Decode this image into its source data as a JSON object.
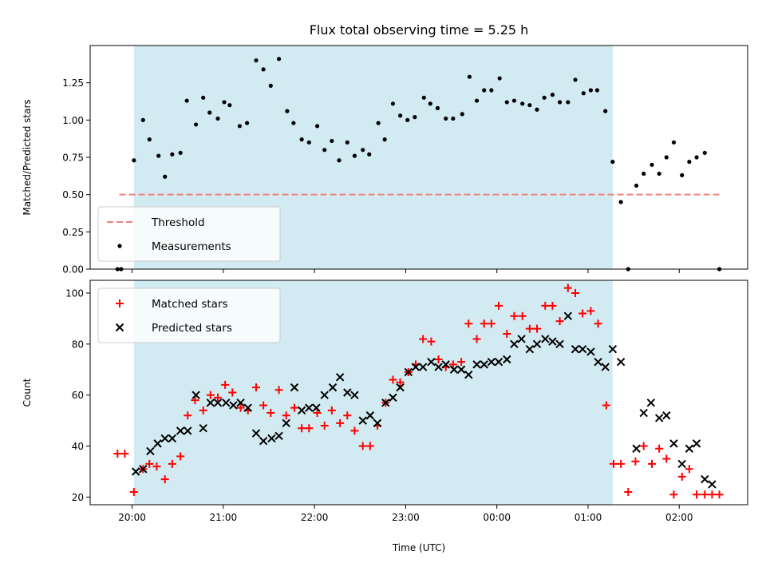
{
  "chart_data": [
    {
      "type": "scatter",
      "title": "Flux total observing time = 5.25 h",
      "xlabel": "",
      "ylabel": "Matched/Predicted stars",
      "ylim": [
        0,
        1.5
      ],
      "yticks": [
        "0.00",
        "0.25",
        "0.50",
        "0.75",
        "1.00",
        "1.25"
      ],
      "ytick_values": [
        0,
        0.25,
        0.5,
        0.75,
        1.0,
        1.25
      ],
      "xlim": [
        19.54,
        26.75
      ],
      "shaded_interval": [
        20.02,
        25.27
      ],
      "shade_color": "#add8e6",
      "threshold": {
        "name": "Threshold",
        "value": 0.5,
        "color": "#f08080",
        "x_range": [
          19.86,
          26.46
        ]
      },
      "legend": {
        "position": "lower-left",
        "entries": [
          "Threshold",
          "Measurements"
        ]
      },
      "series": [
        {
          "name": "Measurements",
          "color": "#000000",
          "x": [
            19.84,
            19.88,
            20.02,
            20.12,
            20.19,
            20.29,
            20.36,
            20.44,
            20.53,
            20.6,
            20.7,
            20.78,
            20.85,
            20.94,
            21.01,
            21.07,
            21.18,
            21.26,
            21.36,
            21.44,
            21.52,
            21.61,
            21.7,
            21.77,
            21.86,
            21.94,
            22.03,
            22.11,
            22.19,
            22.27,
            22.36,
            22.44,
            22.53,
            22.6,
            22.7,
            22.77,
            22.86,
            22.94,
            23.02,
            23.1,
            23.2,
            23.27,
            23.35,
            23.44,
            23.52,
            23.62,
            23.7,
            23.78,
            23.86,
            23.94,
            24.03,
            24.11,
            24.19,
            24.28,
            24.36,
            24.44,
            24.52,
            24.61,
            24.69,
            24.78,
            24.86,
            24.95,
            25.03,
            25.1,
            25.19,
            25.27,
            25.36,
            25.44,
            25.53,
            25.61,
            25.7,
            25.78,
            25.86,
            25.94,
            26.03,
            26.11,
            26.19,
            26.28,
            26.44
          ],
          "y": [
            0.0,
            0.0,
            0.73,
            1.0,
            0.87,
            0.76,
            0.62,
            0.77,
            0.78,
            1.13,
            0.97,
            1.15,
            1.05,
            1.01,
            1.12,
            1.1,
            0.96,
            0.98,
            1.4,
            1.34,
            1.23,
            1.41,
            1.06,
            0.98,
            0.87,
            0.85,
            0.96,
            0.8,
            0.86,
            0.73,
            0.85,
            0.76,
            0.8,
            0.77,
            0.98,
            0.87,
            1.11,
            1.03,
            1.0,
            1.02,
            1.15,
            1.11,
            1.08,
            1.01,
            1.01,
            1.04,
            1.29,
            1.13,
            1.2,
            1.2,
            1.28,
            1.12,
            1.13,
            1.11,
            1.1,
            1.07,
            1.15,
            1.17,
            1.12,
            1.12,
            1.27,
            1.18,
            1.2,
            1.2,
            1.06,
            0.72,
            0.45,
            0.0,
            0.56,
            0.64,
            0.7,
            0.64,
            0.75,
            0.85,
            0.63,
            0.72,
            0.75,
            0.78,
            0.0
          ]
        }
      ]
    },
    {
      "type": "scatter",
      "title": "",
      "xlabel": "Time (UTC)",
      "ylabel": "Count",
      "ylim": [
        17,
        105
      ],
      "yticks": [
        "20",
        "40",
        "60",
        "80",
        "100"
      ],
      "ytick_values": [
        20,
        40,
        60,
        80,
        100
      ],
      "xlim": [
        19.54,
        26.75
      ],
      "xticks": [
        "20:00",
        "21:00",
        "22:00",
        "23:00",
        "00:00",
        "01:00",
        "02:00"
      ],
      "xtick_values": [
        20,
        21,
        22,
        23,
        24,
        25,
        26
      ],
      "shaded_interval": [
        20.02,
        25.27
      ],
      "shade_color": "#add8e6",
      "legend": {
        "position": "upper-left",
        "entries": [
          "Matched stars",
          "Predicted stars"
        ]
      },
      "series": [
        {
          "name": "Matched stars",
          "marker": "plus",
          "color": "#ff0000",
          "x": [
            19.84,
            19.92,
            20.02,
            20.12,
            20.19,
            20.27,
            20.36,
            20.44,
            20.53,
            20.61,
            20.69,
            20.78,
            20.86,
            20.94,
            21.02,
            21.1,
            21.19,
            21.27,
            21.36,
            21.44,
            21.52,
            21.61,
            21.69,
            21.78,
            21.86,
            21.94,
            22.03,
            22.11,
            22.19,
            22.28,
            22.36,
            22.44,
            22.53,
            22.61,
            22.69,
            22.78,
            22.86,
            22.94,
            23.03,
            23.11,
            23.19,
            23.28,
            23.36,
            23.44,
            23.52,
            23.61,
            23.69,
            23.78,
            23.86,
            23.94,
            24.02,
            24.11,
            24.19,
            24.28,
            24.36,
            24.44,
            24.53,
            24.61,
            24.69,
            24.78,
            24.86,
            24.94,
            25.03,
            25.11,
            25.2,
            25.28,
            25.36,
            25.44,
            25.52,
            25.61,
            25.7,
            25.78,
            25.86,
            25.94,
            26.03,
            26.11,
            26.19,
            26.28,
            26.36,
            26.44
          ],
          "y": [
            37,
            37,
            22,
            31,
            33,
            32,
            27,
            33,
            36,
            52,
            58,
            54,
            60,
            59,
            64,
            61,
            55,
            54,
            63,
            56,
            53,
            62,
            52,
            55,
            47,
            47,
            53,
            48,
            54,
            49,
            52,
            46,
            40,
            40,
            48,
            57,
            66,
            65,
            69,
            72,
            82,
            81,
            74,
            71,
            72,
            73,
            88,
            82,
            88,
            88,
            95,
            84,
            91,
            91,
            86,
            86,
            95,
            95,
            89,
            102,
            100,
            92,
            93,
            88,
            56,
            33,
            33,
            22,
            34,
            40,
            33,
            39,
            35,
            21,
            28,
            31,
            21,
            21,
            21,
            21
          ]
        },
        {
          "name": "Predicted stars",
          "marker": "x",
          "color": "#000000",
          "x": [
            20.04,
            20.12,
            20.2,
            20.28,
            20.36,
            20.44,
            20.53,
            20.61,
            20.7,
            20.78,
            20.86,
            20.94,
            21.03,
            21.11,
            21.19,
            21.27,
            21.36,
            21.44,
            21.53,
            21.61,
            21.69,
            21.78,
            21.86,
            21.94,
            22.02,
            22.11,
            22.2,
            22.28,
            22.36,
            22.44,
            22.53,
            22.61,
            22.69,
            22.78,
            22.86,
            22.94,
            23.03,
            23.11,
            23.19,
            23.28,
            23.36,
            23.44,
            23.53,
            23.61,
            23.69,
            23.78,
            23.86,
            23.94,
            24.02,
            24.11,
            24.19,
            24.27,
            24.36,
            24.44,
            24.53,
            24.61,
            24.69,
            24.78,
            24.86,
            24.94,
            25.03,
            25.11,
            25.19,
            25.27,
            25.36,
            25.53,
            25.61,
            25.69,
            25.78,
            25.86,
            25.94,
            26.03,
            26.11,
            26.19,
            26.28,
            26.36
          ],
          "y": [
            30,
            31,
            38,
            41,
            43,
            43,
            46,
            46,
            60,
            47,
            57,
            57,
            57,
            56,
            57,
            55,
            45,
            42,
            43,
            44,
            49,
            63,
            54,
            55,
            55,
            60,
            63,
            67,
            61,
            60,
            50,
            52,
            49,
            57,
            59,
            63,
            69,
            71,
            71,
            73,
            71,
            72,
            70,
            70,
            68,
            72,
            72,
            73,
            73,
            74,
            80,
            82,
            78,
            80,
            82,
            81,
            80,
            91,
            78,
            78,
            77,
            73,
            71,
            78,
            73,
            39,
            53,
            57,
            51,
            52,
            41,
            33,
            39,
            41,
            27,
            25
          ]
        }
      ]
    }
  ]
}
